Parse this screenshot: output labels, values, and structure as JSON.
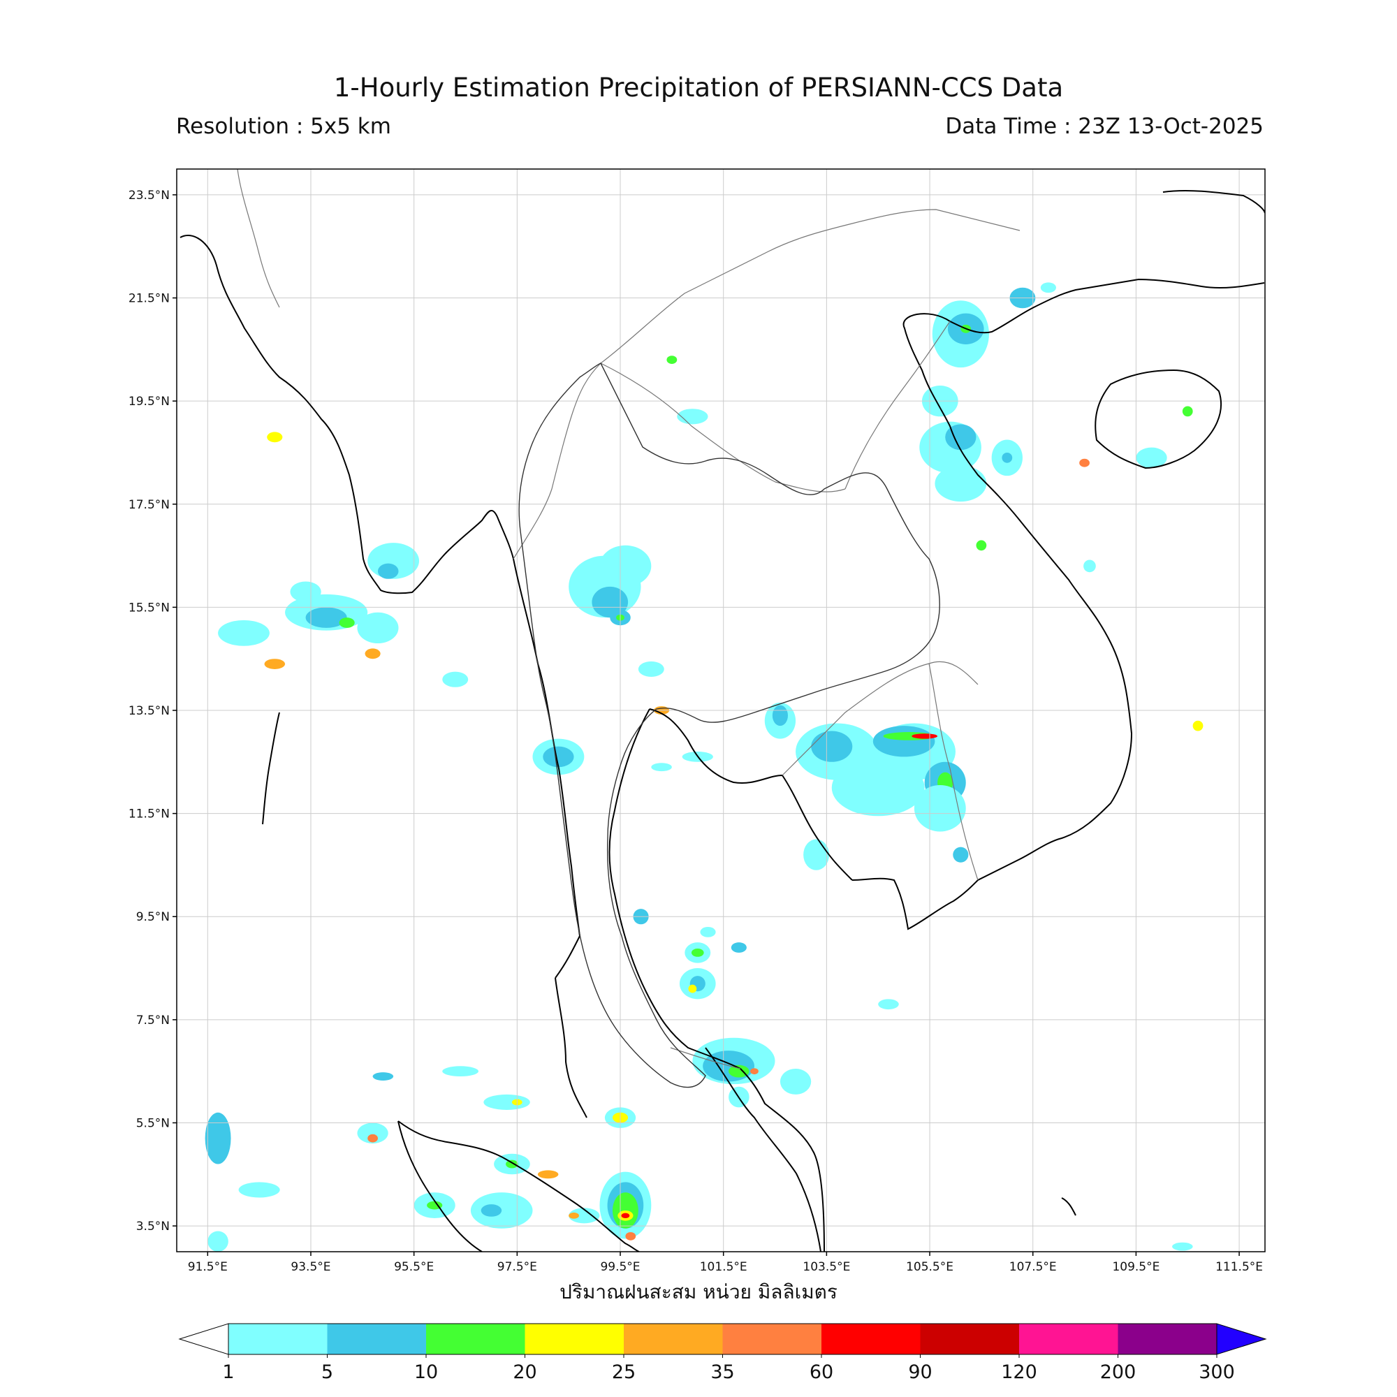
{
  "title": "1-Hourly Estimation Precipitation of PERSIANN-CCS Data",
  "resolution": "Resolution : 5x5 km",
  "data_time": "Data Time : 23Z 13-Oct-2025",
  "lat_labels": [
    "23.5°N",
    "21.5°N",
    "19.5°N",
    "17.5°N",
    "15.5°N",
    "13.5°N",
    "11.5°N",
    "9.5°N",
    "7.5°N",
    "5.5°N",
    "3.5°N"
  ],
  "lon_labels": [
    "91.5°E",
    "93.5°E",
    "95.5°E",
    "97.5°E",
    "99.5°E",
    "101.5°E",
    "103.5°E",
    "105.5°E",
    "107.5°E",
    "109.5°E",
    "111.5°E"
  ],
  "colorbar_caption": "ปริมาณฝนสะสม หน่วย มิลลิเมตร",
  "colorbar_ticks": [
    "1",
    "5",
    "10",
    "20",
    "25",
    "35",
    "60",
    "90",
    "120",
    "200",
    "300"
  ],
  "colorbar_colors": [
    "#80ffff",
    "#3fc8e8",
    "#44ff33",
    "#ffff00",
    "#ffaa22",
    "#ff8040",
    "#ff0000",
    "#cc0000",
    "#ff1493",
    "#8b008b"
  ],
  "colorbar_over_color": "#2200ff",
  "colorbar_under_color": "#ffffff",
  "map_extent": {
    "lon": [
      90.9,
      112.0
    ],
    "lat": [
      3.0,
      24.0
    ]
  },
  "rain_cells": [
    {
      "lon": 91.7,
      "lat": 3.2,
      "rx": 0.2,
      "ry": 0.2,
      "level": 0
    },
    {
      "lon": 91.7,
      "lat": 5.2,
      "rx": 0.25,
      "ry": 0.5,
      "level": 1
    },
    {
      "lon": 92.5,
      "lat": 4.2,
      "rx": 0.4,
      "ry": 0.15,
      "level": 0
    },
    {
      "lon": 92.2,
      "lat": 15.0,
      "rx": 0.5,
      "ry": 0.25,
      "level": 0
    },
    {
      "lon": 92.8,
      "lat": 14.4,
      "rx": 0.2,
      "ry": 0.1,
      "level": 4
    },
    {
      "lon": 92.8,
      "lat": 18.8,
      "rx": 0.15,
      "ry": 0.1,
      "level": 3
    },
    {
      "lon": 93.8,
      "lat": 15.4,
      "rx": 0.8,
      "ry": 0.35,
      "level": 0
    },
    {
      "lon": 93.8,
      "lat": 15.3,
      "rx": 0.4,
      "ry": 0.2,
      "level": 1
    },
    {
      "lon": 94.2,
      "lat": 15.2,
      "rx": 0.15,
      "ry": 0.1,
      "level": 2
    },
    {
      "lon": 93.4,
      "lat": 15.8,
      "rx": 0.3,
      "ry": 0.2,
      "level": 0
    },
    {
      "lon": 94.7,
      "lat": 14.6,
      "rx": 0.15,
      "ry": 0.1,
      "level": 4
    },
    {
      "lon": 95.1,
      "lat": 16.4,
      "rx": 0.5,
      "ry": 0.35,
      "level": 0
    },
    {
      "lon": 95.0,
      "lat": 16.2,
      "rx": 0.2,
      "ry": 0.15,
      "level": 1
    },
    {
      "lon": 94.8,
      "lat": 15.1,
      "rx": 0.4,
      "ry": 0.3,
      "level": 0
    },
    {
      "lon": 96.3,
      "lat": 14.1,
      "rx": 0.25,
      "ry": 0.15,
      "level": 0
    },
    {
      "lon": 94.7,
      "lat": 5.3,
      "rx": 0.3,
      "ry": 0.2,
      "level": 0
    },
    {
      "lon": 94.7,
      "lat": 5.2,
      "rx": 0.1,
      "ry": 0.08,
      "level": 5
    },
    {
      "lon": 94.9,
      "lat": 6.4,
      "rx": 0.2,
      "ry": 0.08,
      "level": 1
    },
    {
      "lon": 96.4,
      "lat": 6.5,
      "rx": 0.35,
      "ry": 0.1,
      "level": 0
    },
    {
      "lon": 95.9,
      "lat": 3.9,
      "rx": 0.4,
      "ry": 0.25,
      "level": 0
    },
    {
      "lon": 95.9,
      "lat": 3.9,
      "rx": 0.15,
      "ry": 0.08,
      "level": 2
    },
    {
      "lon": 97.3,
      "lat": 5.9,
      "rx": 0.45,
      "ry": 0.15,
      "level": 0
    },
    {
      "lon": 97.5,
      "lat": 5.9,
      "rx": 0.1,
      "ry": 0.06,
      "level": 3
    },
    {
      "lon": 97.4,
      "lat": 4.7,
      "rx": 0.35,
      "ry": 0.2,
      "level": 0
    },
    {
      "lon": 97.4,
      "lat": 4.7,
      "rx": 0.12,
      "ry": 0.08,
      "level": 2
    },
    {
      "lon": 97.2,
      "lat": 3.8,
      "rx": 0.6,
      "ry": 0.35,
      "level": 0
    },
    {
      "lon": 97.0,
      "lat": 3.8,
      "rx": 0.2,
      "ry": 0.12,
      "level": 1
    },
    {
      "lon": 98.1,
      "lat": 4.5,
      "rx": 0.2,
      "ry": 0.08,
      "level": 4
    },
    {
      "lon": 98.3,
      "lat": 12.6,
      "rx": 0.5,
      "ry": 0.35,
      "level": 0
    },
    {
      "lon": 98.3,
      "lat": 12.6,
      "rx": 0.3,
      "ry": 0.2,
      "level": 1
    },
    {
      "lon": 98.8,
      "lat": 3.7,
      "rx": 0.3,
      "ry": 0.15,
      "level": 0
    },
    {
      "lon": 98.6,
      "lat": 3.7,
      "rx": 0.1,
      "ry": 0.06,
      "level": 4
    },
    {
      "lon": 99.6,
      "lat": 3.9,
      "rx": 0.5,
      "ry": 0.65,
      "level": 0
    },
    {
      "lon": 99.6,
      "lat": 3.9,
      "rx": 0.35,
      "ry": 0.45,
      "level": 1
    },
    {
      "lon": 99.6,
      "lat": 3.8,
      "rx": 0.25,
      "ry": 0.35,
      "level": 2
    },
    {
      "lon": 99.6,
      "lat": 3.7,
      "rx": 0.15,
      "ry": 0.1,
      "level": 3
    },
    {
      "lon": 99.6,
      "lat": 3.7,
      "rx": 0.08,
      "ry": 0.05,
      "level": 6
    },
    {
      "lon": 99.7,
      "lat": 3.3,
      "rx": 0.1,
      "ry": 0.08,
      "level": 5
    },
    {
      "lon": 99.5,
      "lat": 5.6,
      "rx": 0.3,
      "ry": 0.2,
      "level": 0
    },
    {
      "lon": 99.5,
      "lat": 5.6,
      "rx": 0.15,
      "ry": 0.1,
      "level": 3
    },
    {
      "lon": 99.9,
      "lat": 9.5,
      "rx": 0.15,
      "ry": 0.15,
      "level": 1
    },
    {
      "lon": 99.2,
      "lat": 15.9,
      "rx": 0.7,
      "ry": 0.6,
      "level": 0
    },
    {
      "lon": 99.6,
      "lat": 16.3,
      "rx": 0.5,
      "ry": 0.4,
      "level": 0
    },
    {
      "lon": 99.3,
      "lat": 15.6,
      "rx": 0.35,
      "ry": 0.3,
      "level": 1
    },
    {
      "lon": 99.5,
      "lat": 15.3,
      "rx": 0.2,
      "ry": 0.15,
      "level": 1
    },
    {
      "lon": 99.5,
      "lat": 15.3,
      "rx": 0.08,
      "ry": 0.06,
      "level": 2
    },
    {
      "lon": 100.1,
      "lat": 14.3,
      "rx": 0.25,
      "ry": 0.15,
      "level": 0
    },
    {
      "lon": 100.3,
      "lat": 13.5,
      "rx": 0.15,
      "ry": 0.08,
      "level": 4
    },
    {
      "lon": 100.5,
      "lat": 20.3,
      "rx": 0.1,
      "ry": 0.08,
      "level": 2
    },
    {
      "lon": 100.9,
      "lat": 19.2,
      "rx": 0.3,
      "ry": 0.15,
      "level": 0
    },
    {
      "lon": 101.2,
      "lat": 9.2,
      "rx": 0.15,
      "ry": 0.1,
      "level": 0
    },
    {
      "lon": 101.0,
      "lat": 8.8,
      "rx": 0.25,
      "ry": 0.2,
      "level": 0
    },
    {
      "lon": 101.0,
      "lat": 8.8,
      "rx": 0.12,
      "ry": 0.08,
      "level": 2
    },
    {
      "lon": 101.0,
      "lat": 8.2,
      "rx": 0.35,
      "ry": 0.3,
      "level": 0
    },
    {
      "lon": 101.0,
      "lat": 8.2,
      "rx": 0.15,
      "ry": 0.15,
      "level": 1
    },
    {
      "lon": 100.9,
      "lat": 8.1,
      "rx": 0.08,
      "ry": 0.08,
      "level": 3
    },
    {
      "lon": 101.7,
      "lat": 6.7,
      "rx": 0.8,
      "ry": 0.45,
      "level": 0
    },
    {
      "lon": 101.6,
      "lat": 6.6,
      "rx": 0.5,
      "ry": 0.3,
      "level": 1
    },
    {
      "lon": 101.8,
      "lat": 6.5,
      "rx": 0.2,
      "ry": 0.12,
      "level": 2
    },
    {
      "lon": 102.1,
      "lat": 6.5,
      "rx": 0.08,
      "ry": 0.06,
      "level": 5
    },
    {
      "lon": 101.8,
      "lat": 6.0,
      "rx": 0.2,
      "ry": 0.2,
      "level": 0
    },
    {
      "lon": 101.8,
      "lat": 8.9,
      "rx": 0.15,
      "ry": 0.1,
      "level": 1
    },
    {
      "lon": 102.6,
      "lat": 13.3,
      "rx": 0.3,
      "ry": 0.35,
      "level": 0
    },
    {
      "lon": 102.6,
      "lat": 13.4,
      "rx": 0.15,
      "ry": 0.2,
      "level": 1
    },
    {
      "lon": 102.9,
      "lat": 6.3,
      "rx": 0.3,
      "ry": 0.25,
      "level": 0
    },
    {
      "lon": 103.3,
      "lat": 10.7,
      "rx": 0.25,
      "ry": 0.3,
      "level": 0
    },
    {
      "lon": 103.7,
      "lat": 12.7,
      "rx": 0.8,
      "ry": 0.55,
      "level": 0
    },
    {
      "lon": 103.6,
      "lat": 12.8,
      "rx": 0.4,
      "ry": 0.3,
      "level": 1
    },
    {
      "lon": 104.5,
      "lat": 12.0,
      "rx": 0.9,
      "ry": 0.55,
      "level": 0
    },
    {
      "lon": 105.2,
      "lat": 12.7,
      "rx": 0.8,
      "ry": 0.55,
      "level": 0
    },
    {
      "lon": 105.0,
      "lat": 12.9,
      "rx": 0.6,
      "ry": 0.3,
      "level": 1
    },
    {
      "lon": 105.1,
      "lat": 13.0,
      "rx": 0.5,
      "ry": 0.08,
      "level": 2
    },
    {
      "lon": 105.4,
      "lat": 13.0,
      "rx": 0.25,
      "ry": 0.05,
      "level": 6
    },
    {
      "lon": 105.8,
      "lat": 12.1,
      "rx": 0.4,
      "ry": 0.4,
      "level": 1
    },
    {
      "lon": 105.8,
      "lat": 12.1,
      "rx": 0.15,
      "ry": 0.2,
      "level": 2
    },
    {
      "lon": 105.7,
      "lat": 11.6,
      "rx": 0.5,
      "ry": 0.45,
      "level": 0
    },
    {
      "lon": 106.1,
      "lat": 10.7,
      "rx": 0.15,
      "ry": 0.15,
      "level": 1
    },
    {
      "lon": 104.7,
      "lat": 7.8,
      "rx": 0.2,
      "ry": 0.1,
      "level": 0
    },
    {
      "lon": 106.1,
      "lat": 20.8,
      "rx": 0.55,
      "ry": 0.65,
      "level": 0
    },
    {
      "lon": 106.2,
      "lat": 20.9,
      "rx": 0.35,
      "ry": 0.3,
      "level": 1
    },
    {
      "lon": 106.2,
      "lat": 20.9,
      "rx": 0.1,
      "ry": 0.08,
      "level": 2
    },
    {
      "lon": 105.7,
      "lat": 19.5,
      "rx": 0.35,
      "ry": 0.3,
      "level": 0
    },
    {
      "lon": 105.9,
      "lat": 18.6,
      "rx": 0.6,
      "ry": 0.5,
      "level": 0
    },
    {
      "lon": 106.1,
      "lat": 18.8,
      "rx": 0.3,
      "ry": 0.25,
      "level": 1
    },
    {
      "lon": 106.1,
      "lat": 17.9,
      "rx": 0.5,
      "ry": 0.35,
      "level": 0
    },
    {
      "lon": 106.5,
      "lat": 16.7,
      "rx": 0.1,
      "ry": 0.1,
      "level": 2
    },
    {
      "lon": 107.3,
      "lat": 21.5,
      "rx": 0.25,
      "ry": 0.2,
      "level": 1
    },
    {
      "lon": 107.8,
      "lat": 21.7,
      "rx": 0.15,
      "ry": 0.1,
      "level": 0
    },
    {
      "lon": 107.0,
      "lat": 18.4,
      "rx": 0.3,
      "ry": 0.35,
      "level": 0
    },
    {
      "lon": 107.0,
      "lat": 18.4,
      "rx": 0.1,
      "ry": 0.1,
      "level": 1
    },
    {
      "lon": 108.5,
      "lat": 18.3,
      "rx": 0.1,
      "ry": 0.08,
      "level": 5
    },
    {
      "lon": 109.8,
      "lat": 18.4,
      "rx": 0.3,
      "ry": 0.2,
      "level": 0
    },
    {
      "lon": 110.5,
      "lat": 19.3,
      "rx": 0.1,
      "ry": 0.1,
      "level": 2
    },
    {
      "lon": 110.7,
      "lat": 13.2,
      "rx": 0.1,
      "ry": 0.1,
      "level": 3
    },
    {
      "lon": 108.6,
      "lat": 16.3,
      "rx": 0.12,
      "ry": 0.12,
      "level": 0
    },
    {
      "lon": 110.4,
      "lat": 3.1,
      "rx": 0.2,
      "ry": 0.08,
      "level": 0
    },
    {
      "lon": 101.0,
      "lat": 12.6,
      "rx": 0.3,
      "ry": 0.1,
      "level": 0
    },
    {
      "lon": 100.3,
      "lat": 12.4,
      "rx": 0.2,
      "ry": 0.08,
      "level": 0
    }
  ]
}
